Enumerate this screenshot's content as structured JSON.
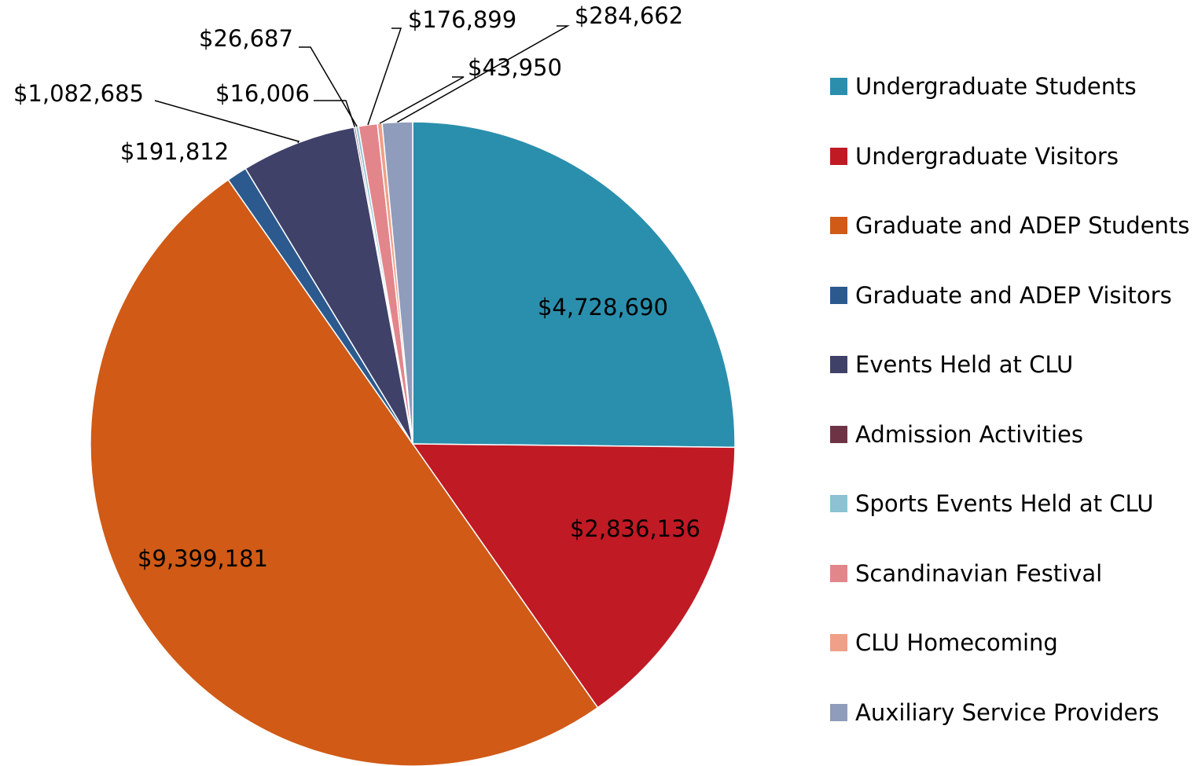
{
  "chart_data": {
    "type": "pie",
    "categories": [
      "Undergraduate Students",
      "Undergraduate Visitors",
      "Graduate and ADEP Students",
      "Graduate and ADEP Visitors",
      "Events Held at CLU",
      "Admission Activities",
      "Sports Events Held at CLU",
      "Scandinavian Festival",
      "CLU Homecoming",
      "Auxiliary Service Providers"
    ],
    "values": [
      4728690,
      2836136,
      9399181,
      191812,
      1082685,
      16006,
      26687,
      176899,
      43950,
      284662
    ],
    "value_labels": [
      "$4,728,690",
      "$2,836,136",
      "$9,399,181",
      "$191,812",
      "$1,082,685",
      "$16,006",
      "$26,687",
      "$176,899",
      "$43,950",
      "$284,662"
    ],
    "colors": [
      "#2a8fad",
      "#c01a24",
      "#d05a16",
      "#2c5a8e",
      "#3f4169",
      "#6e3445",
      "#8cc2d4",
      "#e2868c",
      "#f0a088",
      "#8f9cbb"
    ],
    "legend": "right"
  }
}
